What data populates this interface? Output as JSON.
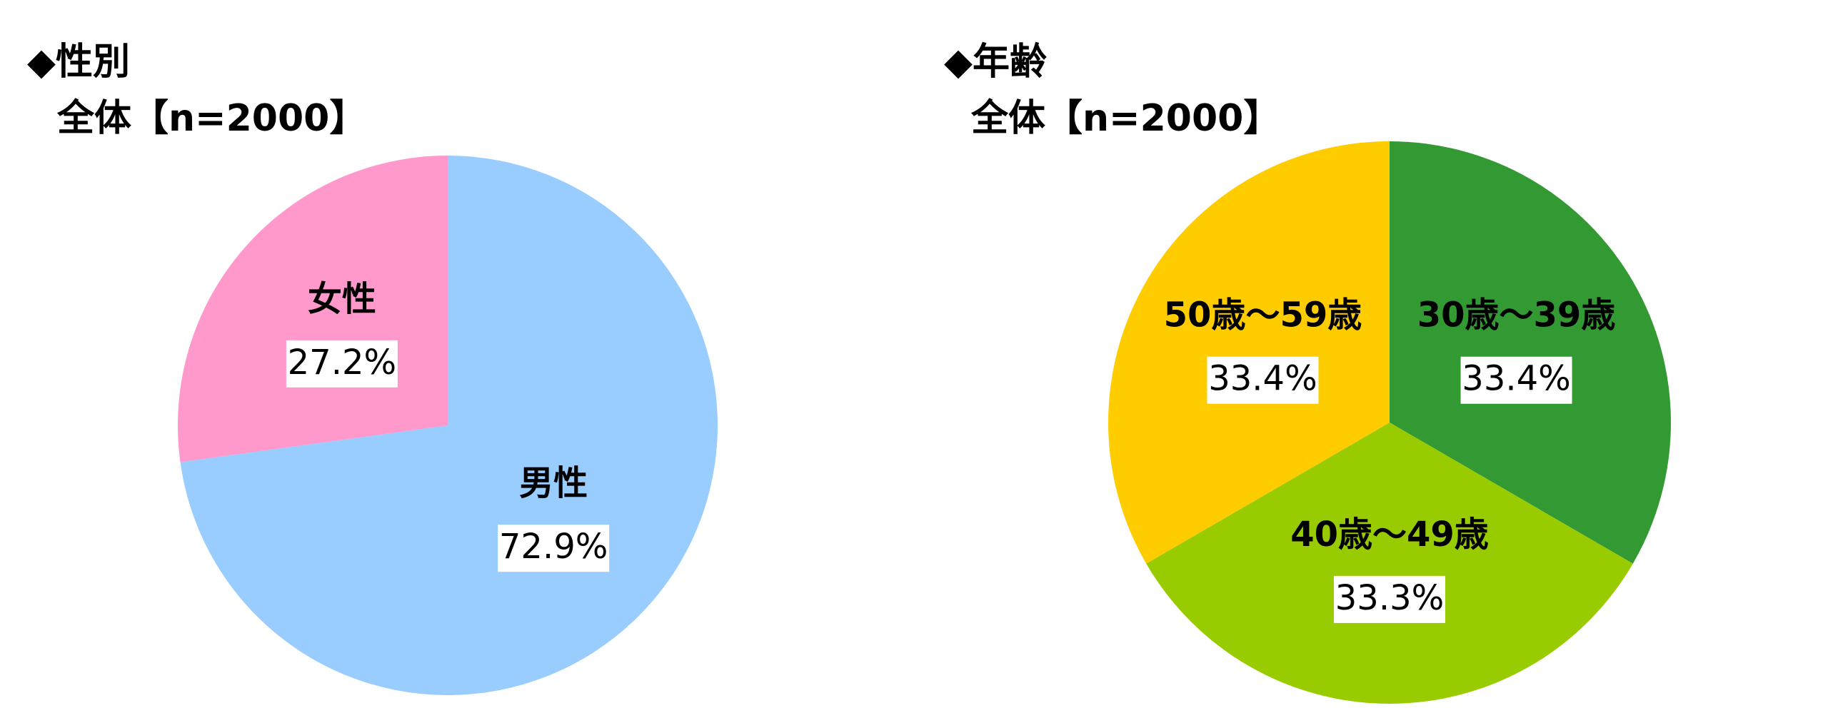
{
  "chart_data": [
    {
      "type": "pie",
      "title": "◆性別",
      "subtitle": "全体【n=2000】",
      "categories": [
        "男性",
        "女性"
      ],
      "values": [
        72.9,
        27.2
      ],
      "value_labels": [
        "72.9%",
        "27.2%"
      ],
      "colors": [
        "#99ccff",
        "#ff99cc"
      ]
    },
    {
      "type": "pie",
      "title": "◆年齢",
      "subtitle": "全体【n=2000】",
      "categories": [
        "30歳～39歳",
        "40歳～49歳",
        "50歳～59歳"
      ],
      "values": [
        33.4,
        33.3,
        33.4
      ],
      "value_labels": [
        "33.4%",
        "33.3%",
        "33.4%"
      ],
      "colors": [
        "#339933",
        "#99cc00",
        "#ffcc00"
      ]
    }
  ]
}
